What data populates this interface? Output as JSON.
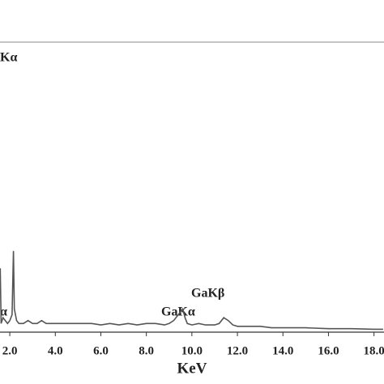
{
  "chart_data": {
    "type": "line",
    "x_label": "KeV",
    "xlim": [
      1.57,
      18.44
    ],
    "ylim": [
      0,
      100
    ],
    "xticks": [
      {
        "value": 2,
        "label": "2.0"
      },
      {
        "value": 4,
        "label": "4.0"
      },
      {
        "value": 6,
        "label": "6.0"
      },
      {
        "value": 8,
        "label": "8.0"
      },
      {
        "value": 10,
        "label": "10.0"
      },
      {
        "value": 12,
        "label": "12.0"
      },
      {
        "value": 14,
        "label": "14.0"
      },
      {
        "value": 16,
        "label": "16.0"
      },
      {
        "value": 18,
        "label": "18.0"
      }
    ],
    "annotations": [
      "Kα",
      "α",
      "GaKα",
      "GaKβ"
    ],
    "color": "#555555",
    "x": [
      1.58,
      1.62,
      1.7,
      1.8,
      1.9,
      2.0,
      2.1,
      2.16,
      2.2,
      2.3,
      2.4,
      2.6,
      2.8,
      3.0,
      3.2,
      3.4,
      3.6,
      3.8,
      4.0,
      4.4,
      4.8,
      5.2,
      5.6,
      6.0,
      6.4,
      6.8,
      7.2,
      7.6,
      8.0,
      8.4,
      8.8,
      9.0,
      9.2,
      9.4,
      9.6,
      9.7,
      9.8,
      10.0,
      10.3,
      10.6,
      11.0,
      11.2,
      11.4,
      11.6,
      11.8,
      12.0,
      12.5,
      13.0,
      13.5,
      14.0,
      15.0,
      16.0,
      17.0,
      18.0,
      18.4
    ],
    "values": [
      22,
      3,
      5,
      4,
      3,
      4,
      6,
      28,
      8,
      4,
      3,
      3,
      4,
      3,
      3,
      4,
      3,
      3,
      3,
      3,
      3,
      3,
      3,
      2.5,
      3,
      2.5,
      3,
      2.5,
      3,
      3,
      2.5,
      3,
      4,
      6,
      8,
      5,
      3,
      2.5,
      3,
      2.5,
      2.5,
      3,
      5,
      4,
      2.5,
      2,
      2,
      2,
      1.5,
      1.5,
      1.5,
      1.2,
      1.2,
      1,
      1
    ]
  }
}
